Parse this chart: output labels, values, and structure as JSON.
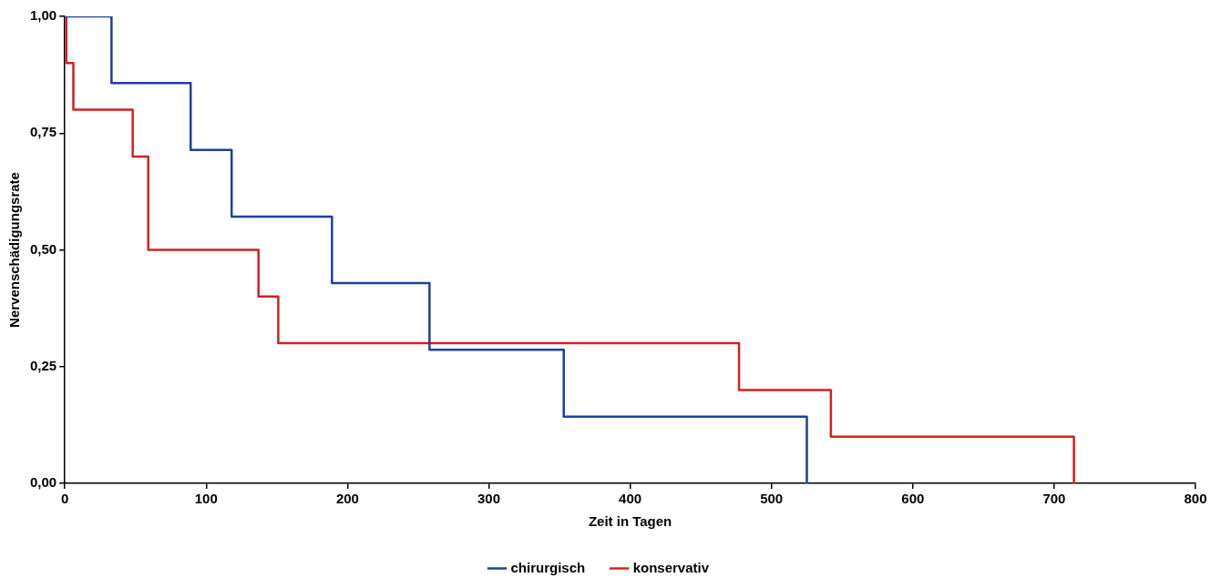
{
  "chart_data": {
    "type": "step",
    "xlabel": "Zeit in Tagen",
    "ylabel": "Nervenschädigungsrate",
    "xlim": [
      0,
      800
    ],
    "xticks": [
      0,
      100,
      200,
      300,
      400,
      500,
      600,
      700,
      800
    ],
    "ylim": [
      0,
      1
    ],
    "yticks": [
      {
        "value": 0,
        "label": "0,00"
      },
      {
        "value": 0.25,
        "label": "0,25"
      },
      {
        "value": 0.5,
        "label": "0,50"
      },
      {
        "value": 0.75,
        "label": "0,75"
      },
      {
        "value": 1,
        "label": "1,00"
      }
    ],
    "grid": false,
    "legend": "bottom",
    "series": [
      {
        "name": "chirurgisch",
        "color": "#1f3f9a",
        "x": [
          0,
          33,
          89,
          118,
          189,
          258,
          353,
          525
        ],
        "values": [
          1,
          0.857,
          0.714,
          0.571,
          0.429,
          0.286,
          0.143,
          0
        ]
      },
      {
        "name": "konservativ",
        "color": "#d42020",
        "x": [
          0,
          1,
          6,
          48,
          59,
          137,
          151,
          477,
          542,
          714
        ],
        "values": [
          1,
          0.9,
          0.8,
          0.7,
          0.5,
          0.4,
          0.3,
          0.2,
          0.1,
          0
        ]
      }
    ]
  }
}
